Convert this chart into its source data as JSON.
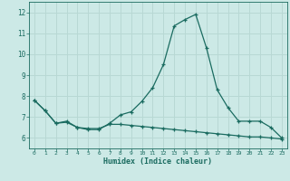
{
  "xlabel": "Humidex (Indice chaleur)",
  "background_color": "#cce9e6",
  "grid_color": "#b8d8d4",
  "line_color": "#1a6b60",
  "x": [
    0,
    1,
    2,
    3,
    4,
    5,
    6,
    7,
    8,
    9,
    10,
    11,
    12,
    13,
    14,
    15,
    16,
    17,
    18,
    19,
    20,
    21,
    22,
    23
  ],
  "line1": [
    7.8,
    7.3,
    6.7,
    6.8,
    6.5,
    6.4,
    6.4,
    6.7,
    7.1,
    7.25,
    7.75,
    8.4,
    9.5,
    11.35,
    11.65,
    11.9,
    10.3,
    8.3,
    7.45,
    6.8,
    6.8,
    6.8,
    6.5,
    6.0
  ],
  "line2": [
    7.8,
    7.3,
    6.7,
    6.75,
    6.5,
    6.45,
    6.45,
    6.65,
    6.65,
    6.6,
    6.55,
    6.5,
    6.45,
    6.4,
    6.35,
    6.3,
    6.25,
    6.2,
    6.15,
    6.1,
    6.05,
    6.05,
    6.0,
    5.95
  ],
  "ylim": [
    5.5,
    12.5
  ],
  "yticks": [
    6,
    7,
    8,
    9,
    10,
    11,
    12
  ],
  "xlim": [
    -0.5,
    23.5
  ],
  "xtick_labels": [
    "0",
    "1",
    "2",
    "3",
    "4",
    "5",
    "6",
    "7",
    "8",
    "9",
    "10",
    "11",
    "12",
    "13",
    "14",
    "15",
    "16",
    "17",
    "18",
    "19",
    "20",
    "21",
    "22",
    "23"
  ]
}
